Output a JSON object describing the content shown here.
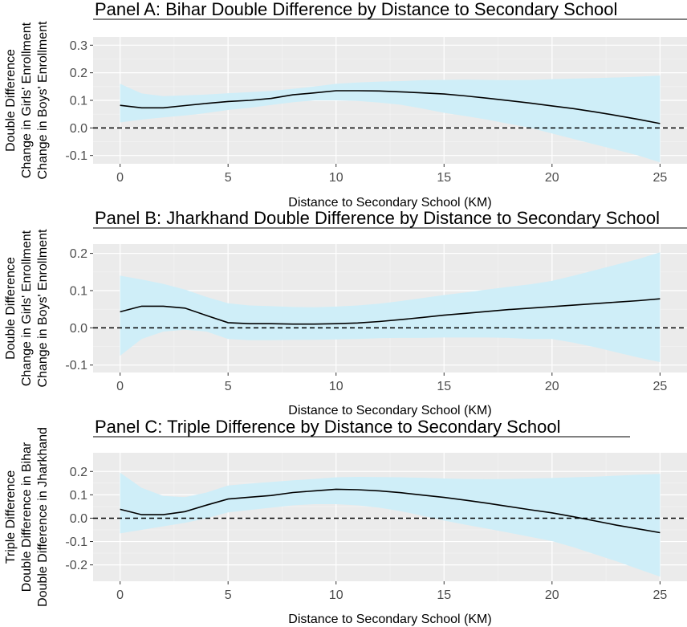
{
  "colors": {
    "panel_background": "#ebebeb",
    "grid_major": "#ffffff",
    "grid_minor": "#f5f5f5",
    "ribbon": "#cfeef8",
    "line": "#000000",
    "zero_line": "#000000",
    "tick_text": "#4d4d4d"
  },
  "chart_data": [
    {
      "type": "line",
      "title": "Panel A: Bihar Double Difference by Distance to Secondary School",
      "xlabel": "Distance to Secondary School (KM)",
      "ylabel_lines": [
        "Double Difference",
        "Change in Girls' Enrollment",
        "Change in Boys' Enrollment"
      ],
      "xlim": [
        -1.25,
        26.25
      ],
      "ylim": [
        -0.13,
        0.33
      ],
      "x_ticks": [
        0,
        5,
        10,
        15,
        20,
        25
      ],
      "y_ticks": [
        -0.1,
        0.0,
        0.1,
        0.2,
        0.3
      ],
      "y_tick_labels": [
        "-0.1",
        "0.0",
        "0.1",
        "0.2",
        "0.3"
      ],
      "zero_line": "dashed",
      "grid": true,
      "series": [
        {
          "x": [
            0,
            1,
            2,
            3,
            4,
            5,
            6,
            7,
            8,
            9,
            10,
            11,
            12,
            13,
            14,
            15,
            16,
            17,
            18,
            19,
            20,
            21,
            22,
            23,
            24,
            25
          ],
          "y": [
            0.082,
            0.073,
            0.073,
            0.081,
            0.089,
            0.096,
            0.1,
            0.107,
            0.12,
            0.127,
            0.135,
            0.135,
            0.134,
            0.131,
            0.127,
            0.123,
            0.116,
            0.108,
            0.099,
            0.09,
            0.08,
            0.07,
            0.058,
            0.045,
            0.031,
            0.016
          ],
          "lower": [
            0.02,
            0.03,
            0.038,
            0.045,
            0.054,
            0.065,
            0.073,
            0.083,
            0.093,
            0.1,
            0.1,
            0.098,
            0.092,
            0.084,
            0.07,
            0.055,
            0.043,
            0.03,
            0.015,
            0.0,
            -0.02,
            -0.04,
            -0.06,
            -0.08,
            -0.1,
            -0.125
          ],
          "upper": [
            0.16,
            0.125,
            0.115,
            0.118,
            0.121,
            0.126,
            0.13,
            0.134,
            0.142,
            0.15,
            0.16,
            0.165,
            0.168,
            0.17,
            0.173,
            0.174,
            0.175,
            0.174,
            0.173,
            0.174,
            0.177,
            0.179,
            0.181,
            0.183,
            0.186,
            0.19
          ]
        }
      ]
    },
    {
      "type": "line",
      "title": "Panel B: Jharkhand Double Difference by Distance to Secondary School",
      "xlabel": "Distance to Secondary School (KM)",
      "ylabel_lines": [
        "Double Difference",
        "Change in Girls' Enrollment",
        "Change in Boys' Enrollment"
      ],
      "xlim": [
        -1.25,
        26.25
      ],
      "ylim": [
        -0.12,
        0.225
      ],
      "x_ticks": [
        0,
        5,
        10,
        15,
        20,
        25
      ],
      "y_ticks": [
        -0.1,
        0.0,
        0.1,
        0.2
      ],
      "y_tick_labels": [
        "-0.1",
        "0.0",
        "0.1",
        "0.2"
      ],
      "zero_line": "dashed",
      "grid": true,
      "series": [
        {
          "x": [
            0,
            1,
            2,
            3,
            4,
            5,
            6,
            7,
            8,
            9,
            10,
            11,
            12,
            13,
            14,
            15,
            16,
            17,
            18,
            19,
            20,
            21,
            22,
            23,
            24,
            25
          ],
          "y": [
            0.043,
            0.058,
            0.058,
            0.053,
            0.033,
            0.014,
            0.011,
            0.011,
            0.01,
            0.01,
            0.011,
            0.013,
            0.017,
            0.022,
            0.028,
            0.034,
            0.039,
            0.044,
            0.049,
            0.053,
            0.057,
            0.061,
            0.065,
            0.069,
            0.073,
            0.078
          ],
          "lower": [
            -0.075,
            -0.03,
            -0.01,
            -0.005,
            -0.01,
            -0.03,
            -0.033,
            -0.033,
            -0.032,
            -0.032,
            -0.031,
            -0.03,
            -0.028,
            -0.027,
            -0.027,
            -0.026,
            -0.026,
            -0.026,
            -0.027,
            -0.03,
            -0.03,
            -0.04,
            -0.052,
            -0.066,
            -0.08,
            -0.092
          ],
          "upper": [
            0.14,
            0.13,
            0.118,
            0.103,
            0.083,
            0.066,
            0.06,
            0.058,
            0.056,
            0.055,
            0.057,
            0.06,
            0.065,
            0.072,
            0.08,
            0.088,
            0.095,
            0.103,
            0.11,
            0.117,
            0.126,
            0.14,
            0.155,
            0.17,
            0.185,
            0.203
          ]
        }
      ]
    },
    {
      "type": "line",
      "title": "Panel C: Triple Difference by Distance to Secondary School",
      "xlabel": "Distance to Secondary School (KM)",
      "ylabel_lines": [
        "Triple Difference",
        "Double Difference in Bihar",
        "Double Difference in Jharkhand"
      ],
      "xlim": [
        -1.25,
        26.25
      ],
      "ylim": [
        -0.27,
        0.28
      ],
      "x_ticks": [
        0,
        5,
        10,
        15,
        20,
        25
      ],
      "y_ticks": [
        -0.2,
        -0.1,
        0.0,
        0.1,
        0.2
      ],
      "y_tick_labels": [
        "-0.2",
        "-0.1",
        "0.0",
        "0.1",
        "0.2"
      ],
      "zero_line": "dashed",
      "grid": true,
      "series": [
        {
          "x": [
            0,
            1,
            2,
            3,
            4,
            5,
            6,
            7,
            8,
            9,
            10,
            11,
            12,
            13,
            14,
            15,
            16,
            17,
            18,
            19,
            20,
            21,
            22,
            23,
            24,
            25
          ],
          "y": [
            0.038,
            0.015,
            0.015,
            0.028,
            0.056,
            0.082,
            0.09,
            0.097,
            0.11,
            0.117,
            0.124,
            0.122,
            0.117,
            0.109,
            0.099,
            0.089,
            0.077,
            0.064,
            0.05,
            0.036,
            0.023,
            0.006,
            -0.012,
            -0.03,
            -0.046,
            -0.062
          ],
          "lower": [
            -0.065,
            -0.05,
            -0.035,
            -0.02,
            0.0,
            0.025,
            0.035,
            0.045,
            0.055,
            0.06,
            0.06,
            0.055,
            0.045,
            0.03,
            0.01,
            -0.01,
            -0.028,
            -0.045,
            -0.062,
            -0.08,
            -0.098,
            -0.125,
            -0.155,
            -0.185,
            -0.218,
            -0.25
          ],
          "upper": [
            0.195,
            0.13,
            0.095,
            0.09,
            0.11,
            0.14,
            0.148,
            0.155,
            0.162,
            0.168,
            0.175,
            0.177,
            0.176,
            0.175,
            0.173,
            0.17,
            0.168,
            0.167,
            0.168,
            0.17,
            0.172,
            0.175,
            0.178,
            0.182,
            0.186,
            0.19
          ]
        }
      ]
    }
  ]
}
